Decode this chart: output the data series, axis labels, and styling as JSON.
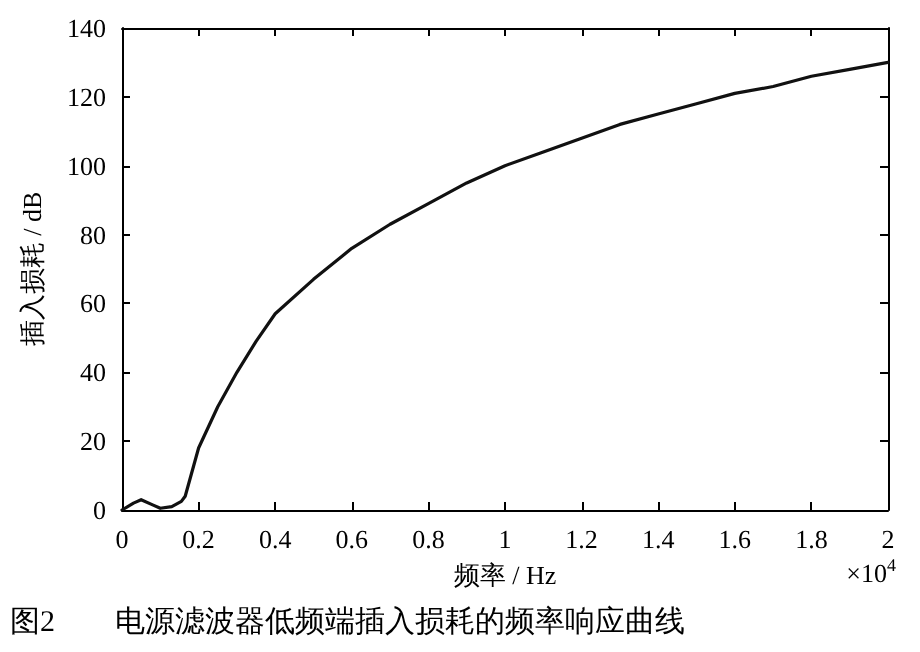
{
  "chart_data": {
    "type": "line",
    "xlabel": "频率 / Hz",
    "ylabel": "插入损耗 / dB",
    "annotations": [
      "×10$^{4}$",
      "图2　　电源滤波器低频端插入损耗的频率响应曲线"
    ],
    "x": [
      0,
      0.03,
      0.05,
      0.08,
      0.1,
      0.13,
      0.155,
      0.165,
      0.2,
      0.25,
      0.3,
      0.35,
      0.4,
      0.5,
      0.6,
      0.7,
      0.8,
      0.9,
      1.0,
      1.1,
      1.2,
      1.3,
      1.4,
      1.5,
      1.6,
      1.7,
      1.8,
      1.9,
      2.0
    ],
    "series": [
      {
        "color": "#111111",
        "values": [
          0,
          2,
          3,
          1.5,
          0.5,
          1,
          2.5,
          4,
          18,
          30,
          40,
          49,
          57,
          67,
          76,
          83,
          89,
          95,
          100,
          104,
          108,
          112,
          115,
          118,
          121,
          123,
          126,
          128,
          130
        ]
      }
    ],
    "xlim": [
      0,
      2
    ],
    "xticks": [
      0,
      0.2,
      0.4,
      0.6,
      0.8,
      1,
      1.2,
      1.4,
      1.6,
      1.8,
      2
    ],
    "ylim": [
      0,
      140
    ],
    "yticks": [
      0,
      20,
      40,
      60,
      80,
      100,
      120,
      140
    ],
    "marker": "none",
    "line_style": "solid"
  }
}
